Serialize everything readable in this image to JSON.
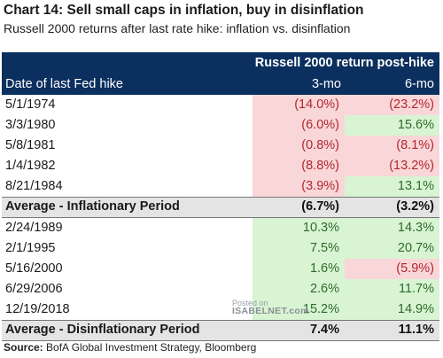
{
  "header": {
    "title": "Chart 14: Sell small caps in inflation, buy in disinflation",
    "subtitle": "Russell 2000 returns after last rate hike: inflation vs. disinflation"
  },
  "chart_data": {
    "type": "table",
    "group_header": "Russell 2000 return post-hike",
    "columns": [
      "Date of last Fed hike",
      "3-mo",
      "6-mo"
    ],
    "inflationary_rows": [
      {
        "date": "5/1/1974",
        "m3": "(14.0%)",
        "m6": "(23.2%)",
        "m3_value": -14.0,
        "m6_value": -23.2
      },
      {
        "date": "3/3/1980",
        "m3": "(6.0%)",
        "m6": "15.6%",
        "m3_value": -6.0,
        "m6_value": 15.6
      },
      {
        "date": "5/8/1981",
        "m3": "(0.8%)",
        "m6": "(8.1%)",
        "m3_value": -0.8,
        "m6_value": -8.1
      },
      {
        "date": "1/4/1982",
        "m3": "(8.8%)",
        "m6": "(13.2%)",
        "m3_value": -8.8,
        "m6_value": -13.2
      },
      {
        "date": "8/21/1984",
        "m3": "(3.9%)",
        "m6": "13.1%",
        "m3_value": -3.9,
        "m6_value": 13.1
      }
    ],
    "inflationary_average": {
      "label": "Average - Inflationary Period",
      "m3": "(6.7%)",
      "m6": "(3.2%)"
    },
    "disinflationary_rows": [
      {
        "date": "2/24/1989",
        "m3": "10.3%",
        "m6": "14.3%",
        "m3_value": 10.3,
        "m6_value": 14.3
      },
      {
        "date": "2/1/1995",
        "m3": "7.5%",
        "m6": "20.7%",
        "m3_value": 7.5,
        "m6_value": 20.7
      },
      {
        "date": "5/16/2000",
        "m3": "1.6%",
        "m6": "(5.9%)",
        "m3_value": 1.6,
        "m6_value": -5.9
      },
      {
        "date": "6/29/2006",
        "m3": "2.6%",
        "m6": "11.7%",
        "m3_value": 2.6,
        "m6_value": 11.7
      },
      {
        "date": "12/19/2018",
        "m3": "15.2%",
        "m6": "14.9%",
        "m3_value": 15.2,
        "m6_value": 14.9
      }
    ],
    "disinflationary_average": {
      "label": "Average - Disinflationary Period",
      "m3": "7.4%",
      "m6": "11.1%"
    }
  },
  "colors": {
    "header_bg": "#0b2f5e",
    "negative_bg": "#f9d6d8",
    "negative_text": "#b0282e",
    "positive_bg": "#d8f4d3",
    "positive_text": "#2f6b2a",
    "average_bg": "#e4e4e4"
  },
  "watermark": {
    "line1": "Posted on",
    "line2": "ISABELNET.com"
  },
  "footer": {
    "label": "Source:",
    "text": " BofA Global Investment Strategy, Bloomberg"
  }
}
